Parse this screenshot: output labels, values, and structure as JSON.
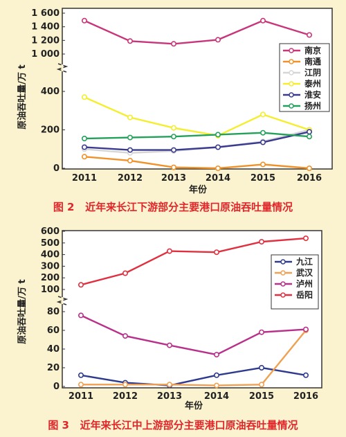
{
  "charts": [
    {
      "type": "line",
      "caption_number": "图 2",
      "caption_text": "近年来长江下游部分主要港口原油吞吐量情况",
      "xlabel": "年份",
      "ylabel": "原油吞吐量/万 t",
      "categories": [
        "2011",
        "2012",
        "2013",
        "2014",
        "2015",
        "2016"
      ],
      "upper_ticks": [
        "1 600",
        "1 400",
        "1 200",
        "1 000"
      ],
      "lower_ticks": [
        "400",
        "200",
        "0"
      ],
      "series": [
        {
          "name": "南京",
          "color": "#c8357a",
          "values": [
            1490,
            1190,
            1150,
            1210,
            1490,
            1280
          ]
        },
        {
          "name": "南通",
          "color": "#f0922a",
          "values": [
            60,
            40,
            5,
            0,
            20,
            0
          ]
        },
        {
          "name": "江阴",
          "color": "#d6d6d6",
          "values": [
            100,
            80,
            90,
            110,
            140,
            200
          ]
        },
        {
          "name": "泰州",
          "color": "#f4ee2c",
          "values": [
            370,
            265,
            210,
            170,
            280,
            200
          ]
        },
        {
          "name": "淮安",
          "color": "#3a3b8f",
          "values": [
            110,
            95,
            95,
            110,
            135,
            190
          ]
        },
        {
          "name": "扬州",
          "color": "#23a05a",
          "values": [
            155,
            160,
            165,
            175,
            185,
            165
          ]
        }
      ]
    },
    {
      "type": "line",
      "caption_number": "图 3",
      "caption_text": "近年来长江中上游部分主要港口原油吞吐量情况",
      "xlabel": "年份",
      "ylabel": "原油吞吐量/万 t",
      "categories": [
        "2011",
        "2012",
        "2013",
        "2014",
        "2015",
        "2016"
      ],
      "upper_ticks": [
        "600",
        "500",
        "400",
        "300",
        "200",
        "100"
      ],
      "lower_ticks": [
        "80",
        "60",
        "40",
        "20",
        "0"
      ],
      "series": [
        {
          "name": "九江",
          "color": "#2e3a8c",
          "values": [
            12,
            4,
            1,
            12,
            20,
            12
          ]
        },
        {
          "name": "武汉",
          "color": "#f0a050",
          "values": [
            2,
            2,
            2,
            1,
            2,
            60
          ]
        },
        {
          "name": "泸州",
          "color": "#b8308a",
          "values": [
            76,
            54,
            44,
            34,
            58,
            61
          ]
        },
        {
          "name": "岳阳",
          "color": "#e03040",
          "values": [
            140,
            240,
            430,
            420,
            510,
            540
          ]
        }
      ]
    }
  ]
}
